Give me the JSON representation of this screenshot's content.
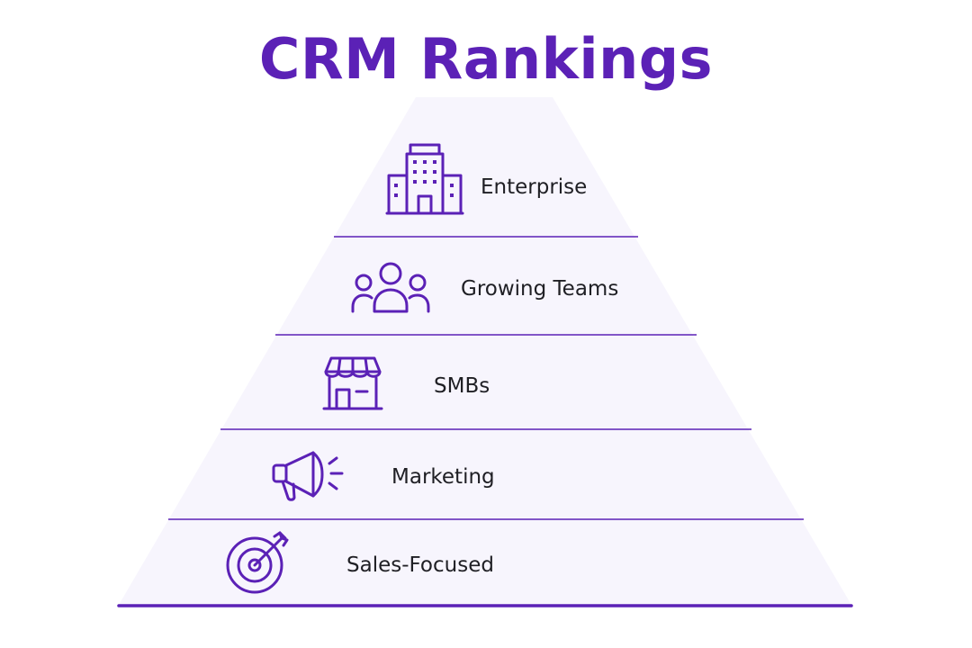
{
  "title": "CRM Rankings",
  "colors": {
    "accent": "#5b21b6",
    "pyramid_fill": "#f7f5fd",
    "divider": "#5b21b6",
    "label_text": "#1f1f24"
  },
  "tiers": [
    {
      "label": "Enterprise",
      "icon": "office-building-icon"
    },
    {
      "label": "Growing Teams",
      "icon": "team-people-icon"
    },
    {
      "label": "SMBs",
      "icon": "storefront-icon"
    },
    {
      "label": "Marketing",
      "icon": "megaphone-icon"
    },
    {
      "label": "Sales-Focused",
      "icon": "target-arrow-icon"
    }
  ]
}
